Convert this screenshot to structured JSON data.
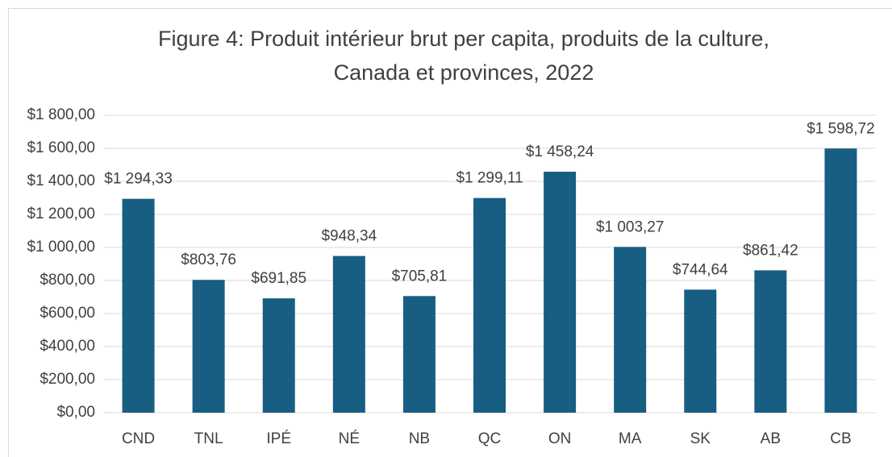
{
  "chart_data": {
    "type": "bar",
    "title": [
      "Figure 4: Produit intérieur brut per capita, produits de la culture,",
      "Canada et provinces, 2022"
    ],
    "categories": [
      "CND",
      "TNL",
      "IPÉ",
      "NÉ",
      "NB",
      "QC",
      "ON",
      "MA",
      "SK",
      "AB",
      "CB"
    ],
    "values": [
      1294.33,
      803.76,
      691.85,
      948.34,
      705.81,
      1299.11,
      1458.24,
      1003.27,
      744.64,
      861.42,
      1598.72
    ],
    "value_labels": [
      "$1 294,33",
      "$803,76",
      "$691,85",
      "$948,34",
      "$705,81",
      "$1 299,11",
      "$1 458,24",
      "$1 003,27",
      "$744,64",
      "$861,42",
      "$1 598,72"
    ],
    "color": "#175e82",
    "ylim": [
      0,
      1800
    ],
    "yticks": [
      {
        "value": 0,
        "label": "$0,00"
      },
      {
        "value": 200,
        "label": "$200,00"
      },
      {
        "value": 400,
        "label": "$400,00"
      },
      {
        "value": 600,
        "label": "$600,00"
      },
      {
        "value": 800,
        "label": "$800,00"
      },
      {
        "value": 1000,
        "label": "$1 000,00"
      },
      {
        "value": 1200,
        "label": "$1 200,00"
      },
      {
        "value": 1400,
        "label": "$1 400,00"
      },
      {
        "value": 1600,
        "label": "$1 600,00"
      },
      {
        "value": 1800,
        "label": "$1 800,00"
      }
    ],
    "grid": true
  }
}
